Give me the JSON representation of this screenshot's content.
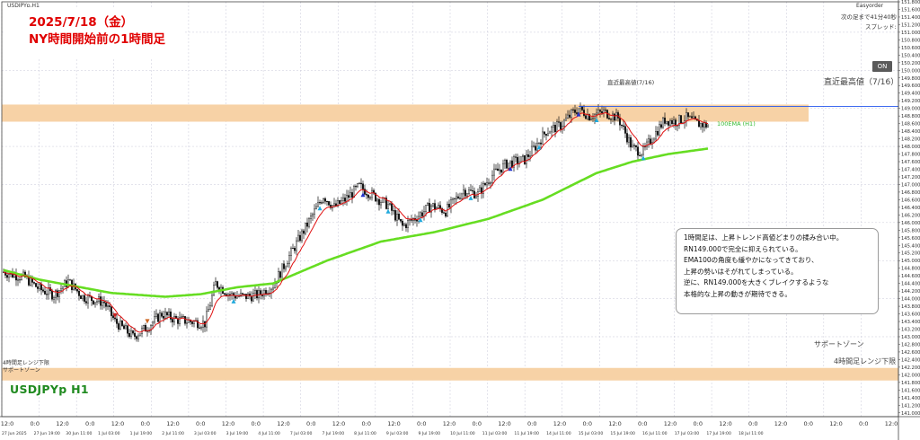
{
  "window": {
    "symbol_tab": "USDJPYp,H1",
    "easyorder": "Easyorder",
    "next_bar": "次の足まで41分40秒",
    "spread": "スプレッド:",
    "on_button": "ON",
    "symbol_big": "USDJPYp H1"
  },
  "title": {
    "line1": "2025/7/18（金）",
    "line2": "NY時間開始前の1時間足"
  },
  "annotations": {
    "recent_high_small": "直近最高値(7/16)",
    "recent_high": "直近最高値（7/16）",
    "ema_label": "100EMA (H1)",
    "support_zone_right": "サポートゾーン",
    "h4_lower_right": "4時間足レンジ下限",
    "h4_lower_left": "4時間足レンジ下限",
    "support_zone_left": "サポートゾーン"
  },
  "comment": [
    "1時間足は、上昇トレンド高値どまりの揉み合い中。",
    "RN149.000で完全に抑えられている。",
    "EMA100の角度も緩やかになってきており、",
    "上昇の勢いはそがれてしまっている。",
    "逆に、RN149.000を大きくブレイクするような",
    "本格的な上昇の動きが期待できる。"
  ],
  "chart_data": {
    "type": "candlestick",
    "symbol": "USDJPYp",
    "timeframe": "H1",
    "ylim": [
      140.9,
      151.8
    ],
    "y_tick_step": 0.2,
    "x_labels": [
      "27 Jun 2025",
      "27 Jun 19:00",
      "30 Jun 11:00",
      "1 Jul 03:00",
      "1 Jul 19:00",
      "2 Jul 11:00",
      "3 Jul 03:00",
      "3 Jul 19:00",
      "4 Jul 11:00",
      "7 Jul 03:00",
      "7 Jul 19:00",
      "8 Jul 11:00",
      "9 Jul 03:00",
      "9 Jul 19:00",
      "10 Jul 11:00",
      "11 Jul 03:00",
      "11 Jul 19:00",
      "14 Jul 11:00",
      "15 Jul 03:00",
      "15 Jul 19:00",
      "16 Jul 11:00",
      "17 Jul 03:00",
      "17 Jul 19:00",
      "18 Jul 11:00"
    ],
    "time_labels": [
      "12:0",
      "0:0",
      "12:0",
      "0:0",
      "12:0",
      "0:0",
      "12:0",
      "0:0",
      "12:0",
      "0:0",
      "12:0",
      "0:0",
      "12:0",
      "0:0",
      "12:0",
      "0:0",
      "12:0",
      "0:0",
      "12:0",
      "0:0",
      "12:0",
      "0:0",
      "12:0",
      "0:0",
      "12:0",
      "0:0",
      "12:0",
      "0:0",
      "12:0",
      "0:0",
      "12:0",
      "0:0",
      "12:0"
    ],
    "price_key": [
      [
        0,
        144.7
      ],
      [
        12,
        144.55
      ],
      [
        20,
        144.25
      ],
      [
        28,
        144.1
      ],
      [
        36,
        144.45
      ],
      [
        44,
        144.05
      ],
      [
        56,
        143.9
      ],
      [
        62,
        143.4
      ],
      [
        72,
        143.0
      ],
      [
        80,
        143.25
      ],
      [
        88,
        143.6
      ],
      [
        96,
        143.45
      ],
      [
        104,
        143.4
      ],
      [
        112,
        143.35
      ],
      [
        118,
        144.4
      ],
      [
        126,
        144.1
      ],
      [
        134,
        144.05
      ],
      [
        142,
        144.1
      ],
      [
        150,
        144.35
      ],
      [
        160,
        145.2
      ],
      [
        166,
        145.7
      ],
      [
        172,
        146.2
      ],
      [
        178,
        146.7
      ],
      [
        184,
        146.4
      ],
      [
        190,
        146.6
      ],
      [
        198,
        146.95
      ],
      [
        206,
        146.7
      ],
      [
        214,
        146.45
      ],
      [
        222,
        145.9
      ],
      [
        230,
        146.15
      ],
      [
        238,
        146.45
      ],
      [
        246,
        146.3
      ],
      [
        256,
        146.85
      ],
      [
        264,
        146.75
      ],
      [
        272,
        147.25
      ],
      [
        280,
        147.55
      ],
      [
        290,
        147.65
      ],
      [
        296,
        148.0
      ],
      [
        302,
        148.4
      ],
      [
        310,
        148.55
      ],
      [
        316,
        148.85
      ],
      [
        320,
        149.0
      ],
      [
        326,
        148.8
      ],
      [
        334,
        148.9
      ],
      [
        342,
        148.75
      ],
      [
        350,
        147.95
      ],
      [
        356,
        147.85
      ],
      [
        362,
        148.3
      ],
      [
        368,
        148.7
      ],
      [
        374,
        148.65
      ],
      [
        380,
        148.75
      ],
      [
        386,
        148.6
      ],
      [
        392,
        148.55
      ]
    ],
    "candle_count": 393,
    "ema100_key": [
      [
        0,
        144.75
      ],
      [
        20,
        144.5
      ],
      [
        60,
        144.15
      ],
      [
        90,
        144.05
      ],
      [
        110,
        144.12
      ],
      [
        130,
        144.3
      ],
      [
        150,
        144.4
      ],
      [
        180,
        145.0
      ],
      [
        210,
        145.5
      ],
      [
        240,
        145.75
      ],
      [
        270,
        146.1
      ],
      [
        300,
        146.6
      ],
      [
        330,
        147.3
      ],
      [
        350,
        147.6
      ],
      [
        370,
        147.8
      ],
      [
        393,
        147.95
      ]
    ],
    "recent_high": {
      "value": 149.05,
      "label": "直近最高値（7/16）"
    },
    "zones": [
      {
        "name": "resistance",
        "from": 148.65,
        "to": 149.1,
        "color": "#f7d2a6"
      },
      {
        "name": "h4_range_lower",
        "from": 141.85,
        "to": 142.18,
        "color": "#f7d2a6"
      }
    ],
    "colors": {
      "ema100": "#66dd22",
      "ma_fast": "#e01010",
      "candle": "#111111",
      "grid": "#c8c8d8",
      "high_line": "#2255ee"
    }
  }
}
